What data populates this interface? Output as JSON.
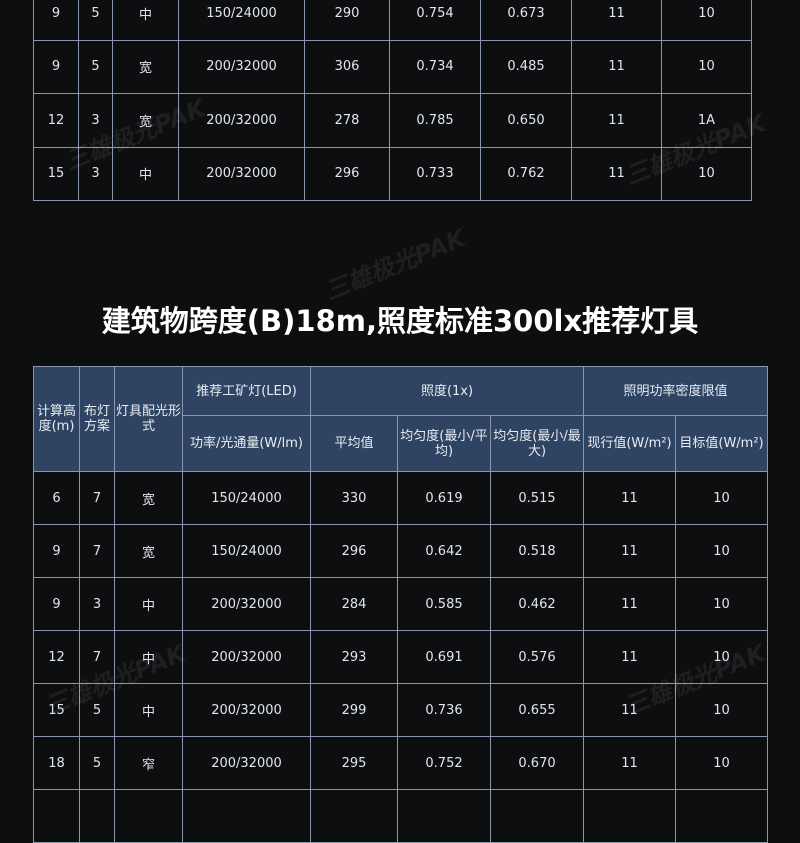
{
  "table1": {
    "rows": [
      [
        "9",
        "5",
        "中",
        "150/24000",
        "290",
        "0.754",
        "0.673",
        "11",
        "10"
      ],
      [
        "9",
        "5",
        "宽",
        "200/32000",
        "306",
        "0.734",
        "0.485",
        "11",
        "10"
      ],
      [
        "12",
        "3",
        "宽",
        "200/32000",
        "278",
        "0.785",
        "0.650",
        "11",
        "1A"
      ],
      [
        "15",
        "3",
        "中",
        "200/32000",
        "296",
        "0.733",
        "0.762",
        "11",
        "10"
      ]
    ]
  },
  "title": "建筑物跨度(B)18m,照度标准300lx推荐灯具",
  "table2": {
    "headers": {
      "height": "计算高度(m)",
      "layout": "布灯方案",
      "distribution": "灯具配光形式",
      "lamp_group": "推荐工矿灯(LED)",
      "power": "功率/光通量(W/lm)",
      "illum_group": "照度(1x)",
      "avg": "平均值",
      "u1": "均匀度(最小/平均)",
      "u2": "均匀度(最小/最大)",
      "lpd_group": "照明功率密度限值",
      "current": "现行值(W/m²)",
      "target": "目标值(W/m²)"
    },
    "rows": [
      [
        "6",
        "7",
        "宽",
        "150/24000",
        "330",
        "0.619",
        "0.515",
        "11",
        "10"
      ],
      [
        "9",
        "7",
        "宽",
        "150/24000",
        "296",
        "0.642",
        "0.518",
        "11",
        "10"
      ],
      [
        "9",
        "3",
        "中",
        "200/32000",
        "284",
        "0.585",
        "0.462",
        "11",
        "10"
      ],
      [
        "12",
        "7",
        "中",
        "200/32000",
        "293",
        "0.691",
        "0.576",
        "11",
        "10"
      ],
      [
        "15",
        "5",
        "中",
        "200/32000",
        "299",
        "0.736",
        "0.655",
        "11",
        "10"
      ],
      [
        "18",
        "5",
        "窄",
        "200/32000",
        "295",
        "0.752",
        "0.670",
        "11",
        "10"
      ],
      [
        "",
        "",
        "",
        "",
        "",
        "",
        "",
        "",
        ""
      ]
    ]
  },
  "watermark": "三雄极光PAK"
}
